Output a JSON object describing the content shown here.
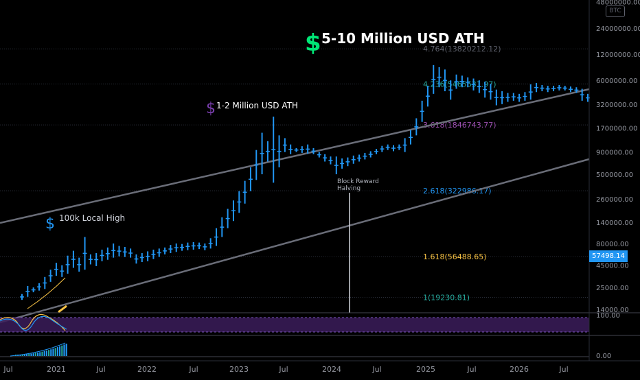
{
  "chart_data": {
    "type": "bar",
    "symbol_badge": "BTC",
    "y_scale": "log",
    "price_axis_labels": [
      "48000000.00",
      "24000000.00",
      "12000000.00",
      "6000000.00",
      "3200000.00",
      "1700000.00",
      "900000.00",
      "500000.00",
      "260000.00",
      "140000.00",
      "80000.00",
      "45000.00",
      "25000.00",
      "14000.00"
    ],
    "time_axis_labels": [
      "Jul",
      "2021",
      "Jul",
      "2022",
      "Jul",
      "2023",
      "Jul",
      "2024",
      "Jul",
      "2025",
      "Jul",
      "2026",
      "Jul"
    ],
    "last_price": "57498.14",
    "fib_levels": [
      {
        "label": "1(19230.81)",
        "value": 19230.81,
        "color": "#26a69a"
      },
      {
        "label": "1.618(56488.65)",
        "value": 56488.65,
        "color": "#f7c244"
      },
      {
        "label": "2.618(322986.17)",
        "value": 322986.17,
        "color": "#2196f3"
      },
      {
        "label": "3.618(1846743.77)",
        "value": 1846743.77,
        "color": "#9c4fb0"
      },
      {
        "label": "4.236(5465631.97)",
        "value": 5465631.97,
        "color": "#26a69a"
      },
      {
        "label": "4.764(13820212.12)",
        "value": 13820212.12,
        "color": "#5d606b"
      }
    ],
    "annotations": [
      {
        "text": "5-10 Million USD ATH",
        "icon": "dollar-sign",
        "color": "#00e676"
      },
      {
        "text": "1-2 Million USD ATH",
        "icon": "dollar-sign",
        "color": "#7b3fb0"
      },
      {
        "text": "100k Local High",
        "icon": "dollar-sign",
        "color": "#2196f3"
      },
      {
        "text": "Block Reward",
        "icon": "",
        "color": "#b2b5be"
      },
      {
        "text": "Halving",
        "icon": "",
        "color": "#b2b5be"
      }
    ],
    "oscillator_axis_label": "100.00",
    "volume_axis_label": "0.00",
    "bars": [
      [
        18000,
        21000
      ],
      [
        19500,
        26000
      ],
      [
        22000,
        25000
      ],
      [
        23000,
        28000
      ],
      [
        24000,
        33000
      ],
      [
        29000,
        40000
      ],
      [
        34000,
        48000
      ],
      [
        33000,
        45000
      ],
      [
        36000,
        58000
      ],
      [
        42000,
        66000
      ],
      [
        38000,
        55000
      ],
      [
        40000,
        95000
      ],
      [
        46000,
        60000
      ],
      [
        44000,
        62000
      ],
      [
        50000,
        68000
      ],
      [
        52000,
        72000
      ],
      [
        55000,
        80000
      ],
      [
        57000,
        75000
      ],
      [
        56000,
        73000
      ],
      [
        55000,
        70000
      ],
      [
        47000,
        60000
      ],
      [
        49000,
        62000
      ],
      [
        50000,
        65000
      ],
      [
        53000,
        68000
      ],
      [
        56000,
        70000
      ],
      [
        60000,
        72000
      ],
      [
        62000,
        77000
      ],
      [
        64000,
        80000
      ],
      [
        66000,
        79000
      ],
      [
        67000,
        82000
      ],
      [
        68000,
        83000
      ],
      [
        69000,
        82000
      ],
      [
        67000,
        80000
      ],
      [
        70000,
        92000
      ],
      [
        75000,
        120000
      ],
      [
        95000,
        160000
      ],
      [
        120000,
        200000
      ],
      [
        145000,
        250000
      ],
      [
        180000,
        320000
      ],
      [
        230000,
        420000
      ],
      [
        320000,
        600000
      ],
      [
        430000,
        950000
      ],
      [
        500000,
        1500000
      ],
      [
        700000,
        1200000
      ],
      [
        400000,
        2300000
      ],
      [
        600000,
        1400000
      ],
      [
        900000,
        1300000
      ],
      [
        850000,
        1100000
      ],
      [
        900000,
        1000000
      ],
      [
        880000,
        1050000
      ],
      [
        860000,
        1100000
      ],
      [
        850000,
        1000000
      ],
      [
        780000,
        900000
      ],
      [
        700000,
        850000
      ],
      [
        650000,
        800000
      ],
      [
        500000,
        800000
      ],
      [
        580000,
        760000
      ],
      [
        620000,
        780000
      ],
      [
        660000,
        820000
      ],
      [
        700000,
        840000
      ],
      [
        740000,
        880000
      ],
      [
        780000,
        920000
      ],
      [
        850000,
        980000
      ],
      [
        900000,
        1060000
      ],
      [
        950000,
        1100000
      ],
      [
        920000,
        1080000
      ],
      [
        950000,
        1100000
      ],
      [
        900000,
        1300000
      ],
      [
        1100000,
        1600000
      ],
      [
        1400000,
        2200000
      ],
      [
        2000000,
        3500000
      ],
      [
        3000000,
        5200000
      ],
      [
        4200000,
        9000000
      ],
      [
        5000000,
        8500000
      ],
      [
        4500000,
        8000000
      ],
      [
        3600000,
        6000000
      ],
      [
        4800000,
        7000000
      ],
      [
        5000000,
        6800000
      ],
      [
        5000000,
        6500000
      ],
      [
        4600000,
        6300000
      ],
      [
        4300000,
        6000000
      ],
      [
        3800000,
        5800000
      ],
      [
        3600000,
        5500000
      ],
      [
        3100000,
        4700000
      ],
      [
        3200000,
        4500000
      ],
      [
        3400000,
        4300000
      ],
      [
        3500000,
        4300000
      ],
      [
        3400000,
        4200000
      ],
      [
        3500000,
        4400000
      ],
      [
        3600000,
        5400000
      ],
      [
        4400000,
        5600000
      ],
      [
        4500000,
        5300000
      ],
      [
        4400000,
        5200000
      ],
      [
        4500000,
        5200000
      ],
      [
        4600000,
        5300000
      ],
      [
        4600000,
        5200000
      ],
      [
        4400000,
        5100000
      ],
      [
        4300000,
        5000000
      ],
      [
        3500000,
        4800000
      ],
      [
        3400000,
        4200000
      ]
    ]
  }
}
